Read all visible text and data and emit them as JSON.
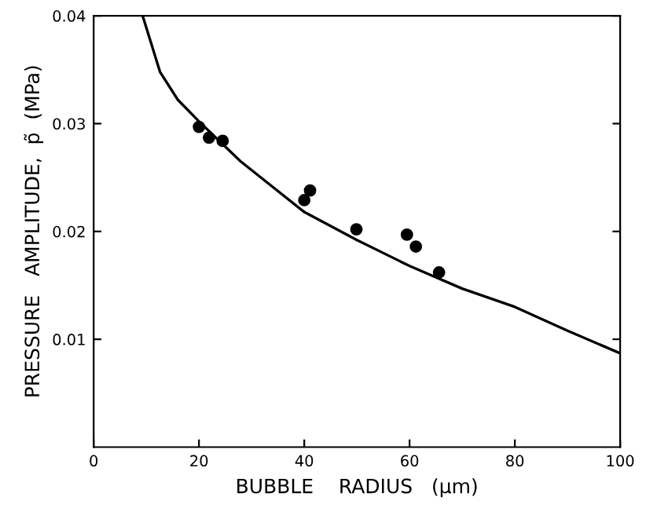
{
  "chart_data": {
    "type": "scatter",
    "xlabel": "BUBBLE    RADIUS   (μm)",
    "ylabel": "PRESSURE   AMPLITUDE,  p̃  (MPa)",
    "xlim": [
      0,
      100
    ],
    "ylim": [
      0,
      0.04
    ],
    "xticks": [
      0,
      20,
      40,
      60,
      80,
      100
    ],
    "yticks": [
      0.01,
      0.02,
      0.03,
      0.04
    ],
    "grid": false,
    "legend": false,
    "series": [
      {
        "color": "#000000",
        "marker": "circle",
        "x": [
          20,
          21.9,
          24.5,
          40,
          41.1,
          49.9,
          59.5,
          61.2,
          65.6
        ],
        "values": [
          0.0297,
          0.0287,
          0.0284,
          0.0229,
          0.0238,
          0.0202,
          0.0197,
          0.0186,
          0.0162
        ]
      },
      {
        "type": "line",
        "color": "#000000",
        "marker": "none",
        "line_style": "solid",
        "x": [
          9.3,
          12.6,
          16,
          20,
          27.9,
          40,
          50,
          60,
          70,
          80,
          90,
          100
        ],
        "values": [
          0.04,
          0.0348,
          0.0322,
          0.0302,
          0.0265,
          0.0218,
          0.0192,
          0.0168,
          0.0147,
          0.013,
          0.0108,
          0.0087
        ]
      }
    ]
  }
}
